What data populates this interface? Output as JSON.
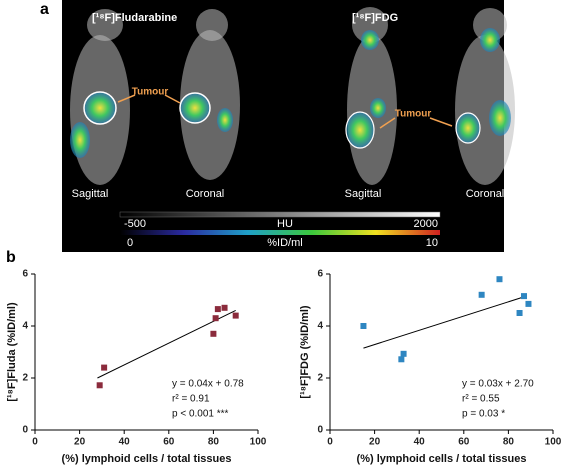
{
  "panel_a": {
    "label": "a",
    "tracers": [
      "[¹⁸F]Fludarabine",
      "[¹⁸F]FDG"
    ],
    "annotations": [
      "Tumour",
      "Tumour"
    ],
    "views": [
      "Sagittal",
      "Coronal",
      "Sagittal",
      "Coronal"
    ],
    "colorbars": [
      {
        "min": -500,
        "title": "HU",
        "max": 2000
      },
      {
        "min": 0,
        "title": "%ID/ml",
        "max": 10
      }
    ]
  },
  "panel_b": {
    "label": "b"
  },
  "chart_data": [
    {
      "type": "scatter",
      "ylabel": "[¹⁸F]Fluda (%ID/ml)",
      "xlabel": "(%) lymphoid cells / total tissues",
      "x": [
        29,
        31,
        80,
        81,
        82,
        85,
        90
      ],
      "values": [
        1.72,
        2.4,
        3.7,
        4.3,
        4.65,
        4.7,
        4.4
      ],
      "color": "#8b2b3c",
      "fit": {
        "x": [
          28,
          90
        ],
        "y": [
          2.0,
          4.6
        ]
      },
      "annotations": [
        "y = 0.04x + 0.78",
        "r² = 0.91",
        "p < 0.001 ***"
      ],
      "xlim": [
        0,
        100
      ],
      "xticks": [
        0,
        20,
        40,
        60,
        80,
        100
      ],
      "ylim": [
        0,
        6
      ],
      "yticks": [
        0,
        2,
        4,
        6
      ]
    },
    {
      "type": "scatter",
      "ylabel": "[¹⁸F]FDG (%ID/ml)",
      "xlabel": "(%) lymphoid cells / total tissues",
      "x": [
        15,
        32,
        33,
        68,
        76,
        85,
        87,
        89
      ],
      "values": [
        4.0,
        2.72,
        2.93,
        5.2,
        5.8,
        4.5,
        5.15,
        4.85
      ],
      "color": "#2e86c1",
      "fit": {
        "x": [
          15,
          88
        ],
        "y": [
          3.15,
          5.15
        ]
      },
      "annotations": [
        "y = 0.03x + 2.70",
        "r² = 0.55",
        "p = 0.03 *"
      ],
      "xlim": [
        0,
        100
      ],
      "xticks": [
        0,
        20,
        40,
        60,
        80,
        100
      ],
      "ylim": [
        0,
        6
      ],
      "yticks": [
        0,
        2,
        4,
        6
      ]
    }
  ]
}
